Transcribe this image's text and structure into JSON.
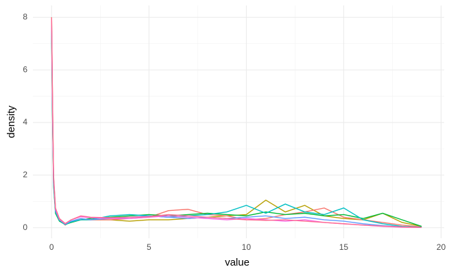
{
  "chart_data": {
    "type": "line",
    "x_label": "value",
    "y_label": "density",
    "x": [
      0,
      0.05,
      0.1,
      0.2,
      0.4,
      0.7,
      1,
      1.5,
      2,
      3,
      4,
      5,
      6,
      7,
      8,
      9,
      10,
      11,
      12,
      13,
      14,
      15,
      16,
      17,
      18,
      19
    ],
    "series": [
      {
        "color": "#B79F00",
        "values": [
          8.0,
          4.6,
          1.9,
          0.7,
          0.3,
          0.15,
          0.2,
          0.3,
          0.3,
          0.3,
          0.25,
          0.3,
          0.3,
          0.35,
          0.4,
          0.45,
          0.5,
          1.05,
          0.6,
          0.85,
          0.45,
          0.35,
          0.3,
          0.55,
          0.2,
          0.05
        ]
      },
      {
        "color": "#F8766D",
        "values": [
          7.6,
          4.2,
          1.7,
          0.6,
          0.3,
          0.1,
          0.25,
          0.35,
          0.3,
          0.3,
          0.35,
          0.4,
          0.65,
          0.7,
          0.5,
          0.45,
          0.3,
          0.35,
          0.5,
          0.6,
          0.75,
          0.4,
          0.3,
          0.2,
          0.1,
          0.03
        ]
      },
      {
        "color": "#00BA38",
        "values": [
          7.4,
          4.0,
          1.6,
          0.55,
          0.25,
          0.12,
          0.2,
          0.3,
          0.35,
          0.4,
          0.45,
          0.5,
          0.45,
          0.5,
          0.55,
          0.5,
          0.45,
          0.6,
          0.5,
          0.55,
          0.45,
          0.5,
          0.35,
          0.55,
          0.3,
          0.05
        ]
      },
      {
        "color": "#00BFC4",
        "values": [
          7.5,
          4.1,
          1.7,
          0.6,
          0.28,
          0.12,
          0.22,
          0.3,
          0.3,
          0.45,
          0.5,
          0.45,
          0.4,
          0.45,
          0.5,
          0.6,
          0.85,
          0.55,
          0.9,
          0.6,
          0.5,
          0.75,
          0.3,
          0.15,
          0.05,
          0.02
        ]
      },
      {
        "color": "#619CFF",
        "values": [
          7.7,
          4.3,
          1.8,
          0.65,
          0.3,
          0.14,
          0.25,
          0.35,
          0.3,
          0.35,
          0.4,
          0.45,
          0.4,
          0.35,
          0.4,
          0.35,
          0.4,
          0.45,
          0.35,
          0.4,
          0.3,
          0.25,
          0.15,
          0.08,
          0.03,
          0.01
        ]
      },
      {
        "color": "#F564E3",
        "values": [
          7.9,
          4.5,
          1.9,
          0.7,
          0.32,
          0.15,
          0.3,
          0.42,
          0.38,
          0.35,
          0.35,
          0.4,
          0.45,
          0.4,
          0.35,
          0.3,
          0.35,
          0.3,
          0.25,
          0.3,
          0.2,
          0.15,
          0.1,
          0.05,
          0.02,
          0.01
        ]
      },
      {
        "color": "#FF6C91",
        "values": [
          8.0,
          4.7,
          2.0,
          0.75,
          0.35,
          0.16,
          0.3,
          0.45,
          0.4,
          0.38,
          0.4,
          0.42,
          0.5,
          0.45,
          0.4,
          0.35,
          0.3,
          0.28,
          0.3,
          0.25,
          0.2,
          0.15,
          0.1,
          0.06,
          0.03,
          0.01
        ]
      }
    ],
    "xlim": [
      -0.96,
      20.16
    ],
    "ylim": [
      -0.4,
      8.45
    ],
    "xticks": [
      0,
      5,
      10,
      15,
      20
    ],
    "yticks": [
      0,
      2,
      4,
      6,
      8
    ],
    "xminor": [
      2.5,
      7.5,
      12.5,
      17.5
    ],
    "yminor": [
      1,
      3,
      5,
      7
    ],
    "grid": true
  }
}
